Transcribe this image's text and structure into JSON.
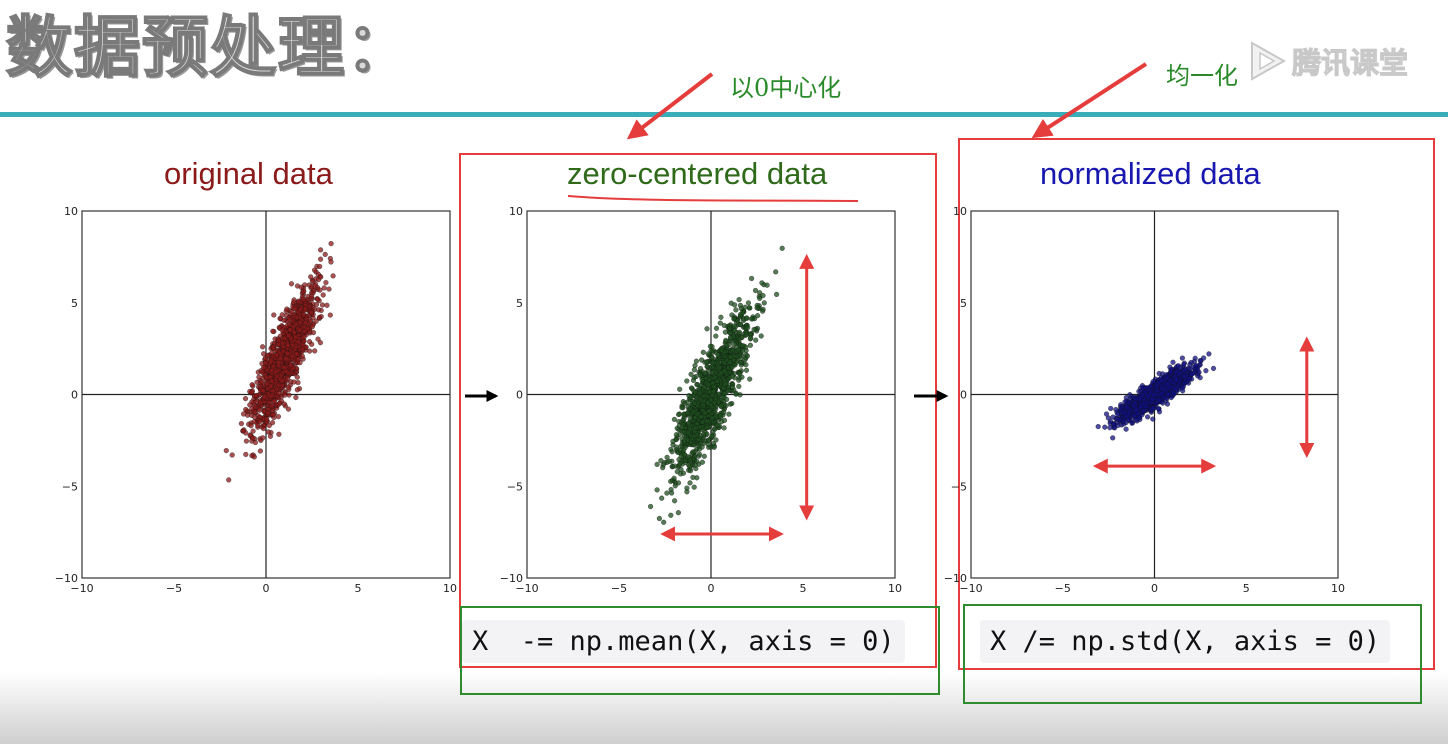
{
  "slide": {
    "title": "数据预处理：",
    "annotation_zero_center": "以0中心化",
    "annotation_normalize": "均一化",
    "watermark": "腾讯课堂"
  },
  "code": {
    "zero_center": "X  -= np.mean(X, axis = 0)",
    "normalize": "X /= np.std(X, axis = 0)"
  },
  "colors": {
    "original": "#8b1a1a",
    "zero_centered": "#1e4d1e",
    "normalized": "#101080",
    "annotation_green": "#2a8a2a",
    "highlight_red": "#e53c3c",
    "teal_rule": "#3aaeb8"
  },
  "chart_data": [
    {
      "type": "scatter",
      "title": "original data",
      "xlim": [
        -10,
        10
      ],
      "ylim": [
        -10,
        10
      ],
      "xticks": [
        "−10",
        "−5",
        "0",
        "5",
        "10"
      ],
      "yticks": [
        "10",
        "5",
        "0",
        "−5",
        "−10"
      ],
      "grid": false,
      "center": [
        1,
        2
      ],
      "std_major": 2.1,
      "std_minor": 0.45,
      "angle_deg": 68,
      "n_points": 1200,
      "color": "#8b1a1a"
    },
    {
      "type": "scatter",
      "title": "zero-centered data",
      "xlim": [
        -10,
        10
      ],
      "ylim": [
        -10,
        10
      ],
      "xticks": [
        "−10",
        "−5",
        "0",
        "5",
        "10"
      ],
      "yticks": [
        "10",
        "5",
        "0",
        "−5",
        "−10"
      ],
      "grid": false,
      "center": [
        0,
        0
      ],
      "std_major": 2.5,
      "std_minor": 0.5,
      "angle_deg": 66,
      "n_points": 1200,
      "color": "#1e4d1e",
      "vertical_range": [
        -6.7,
        7.5
      ],
      "horizontal_range": [
        -2.6,
        3.8
      ]
    },
    {
      "type": "scatter",
      "title": "normalized data",
      "xlim": [
        -10,
        10
      ],
      "ylim": [
        -10,
        10
      ],
      "xticks": [
        "−10",
        "−5",
        "0",
        "5",
        "10"
      ],
      "yticks": [
        "10",
        "5",
        "0",
        "−5",
        "−10"
      ],
      "grid": false,
      "center": [
        0,
        0
      ],
      "std_major": 1.15,
      "std_minor": 0.28,
      "angle_deg": 35,
      "n_points": 1200,
      "color": "#101080",
      "vertical_range": [
        -3.3,
        3.0
      ],
      "horizontal_range": [
        -3.2,
        3.2
      ]
    }
  ]
}
